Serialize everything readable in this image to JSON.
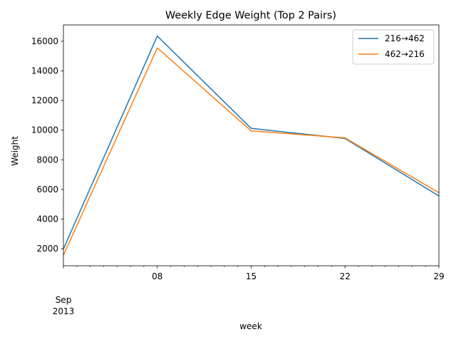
{
  "chart_data": {
    "type": "line",
    "title": "Weekly Edge Weight (Top 2 Pairs)",
    "xlabel": "week",
    "ylabel": "Weight",
    "x": [
      "2013-09-01",
      "2013-09-08",
      "2013-09-15",
      "2013-09-22",
      "2013-09-29"
    ],
    "x_tick_labels": [
      "",
      "08",
      "15",
      "22",
      "29"
    ],
    "x_secondary_label": [
      "Sep",
      "2013"
    ],
    "ylim": [
      850,
      17100
    ],
    "y_ticks": [
      2000,
      4000,
      6000,
      8000,
      10000,
      12000,
      14000,
      16000
    ],
    "grid": false,
    "legend_position": "top-right",
    "series": [
      {
        "name": "216→462",
        "color": "#1f77b4",
        "values": [
          1980,
          16350,
          10120,
          9440,
          5560
        ]
      },
      {
        "name": "462→216",
        "color": "#ff7f0e",
        "values": [
          1560,
          15550,
          9950,
          9480,
          5780
        ]
      }
    ]
  }
}
